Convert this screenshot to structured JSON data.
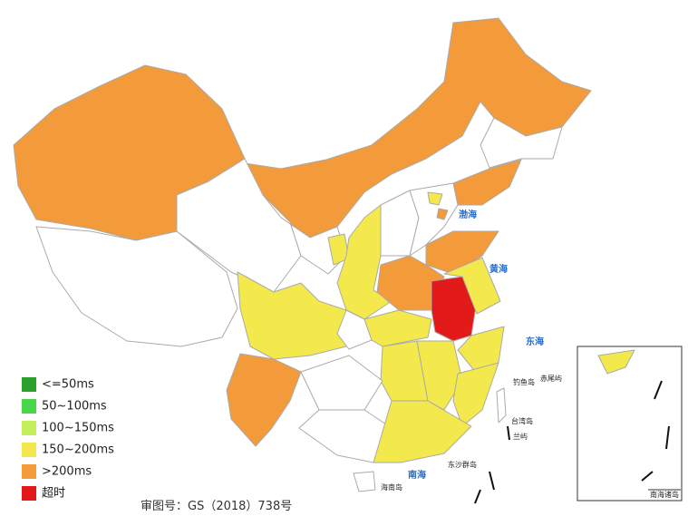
{
  "legend": [
    {
      "label": "<=50ms",
      "color": "#2ca02c"
    },
    {
      "label": "50~100ms",
      "color": "#49d64a"
    },
    {
      "label": "100~150ms",
      "color": "#c5ee5c"
    },
    {
      "label": "150~200ms",
      "color": "#f3e94c"
    },
    {
      "label": ">200ms",
      "color": "#f39a3a"
    },
    {
      "label": "超时",
      "color": "#e31a1a"
    }
  ],
  "sea_labels": [
    "渤海",
    "黄海",
    "东海",
    "南海"
  ],
  "island_labels": [
    "钓鱼岛",
    "赤尾屿",
    "台湾岛",
    "兰屿",
    "东沙群岛",
    "海南岛",
    "南海诸岛"
  ],
  "footnote": "审图号：GS（2018）738号"
}
